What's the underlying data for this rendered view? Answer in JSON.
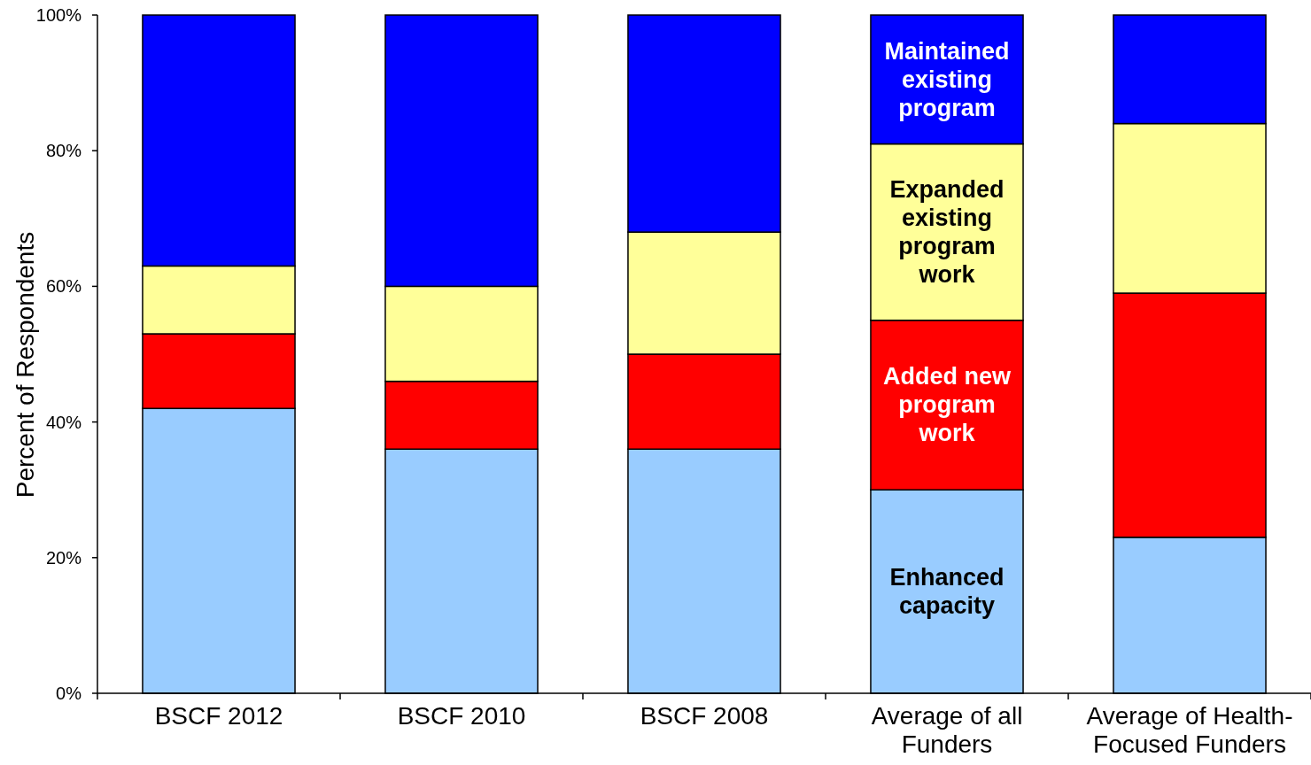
{
  "chart_data": {
    "type": "bar",
    "stacked": true,
    "ylabel": "Percent of Respondents",
    "categories": [
      "BSCF 2012",
      "BSCF 2010",
      "BSCF 2008",
      "Average of all Funders",
      "Average of Health-Focused Funders"
    ],
    "series": [
      {
        "name": "Enhanced capacity",
        "color": "#99ccff",
        "values": [
          42,
          36,
          36,
          30,
          23
        ]
      },
      {
        "name": "Added new program work",
        "color": "#ff0000",
        "values": [
          11,
          10,
          14,
          25,
          36
        ]
      },
      {
        "name": "Expanded existing program work",
        "color": "#ffff99",
        "values": [
          10,
          14,
          18,
          26,
          25
        ]
      },
      {
        "name": "Maintained existing program",
        "color": "#0000ff",
        "values": [
          37,
          40,
          32,
          19,
          16
        ]
      }
    ],
    "ylim": [
      0,
      100
    ],
    "yticks": [
      {
        "value": 0,
        "label": "0%"
      },
      {
        "value": 20,
        "label": "20%"
      },
      {
        "value": 40,
        "label": "40%"
      },
      {
        "value": 60,
        "label": "60%"
      },
      {
        "value": 80,
        "label": "80%"
      },
      {
        "value": 100,
        "label": "100%"
      }
    ],
    "grid": false,
    "legend": false
  }
}
